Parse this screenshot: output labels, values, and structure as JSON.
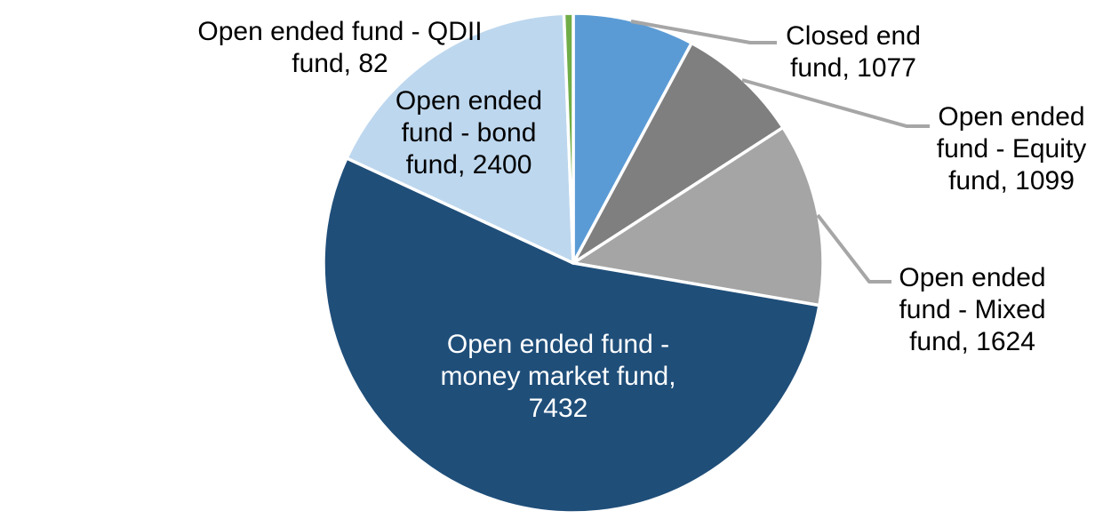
{
  "chart_data": {
    "type": "pie",
    "title": "",
    "legend_position": "none",
    "data_label_format": "category name, value",
    "start_angle_deg": 0,
    "direction": "clockwise",
    "total": 13714,
    "categories": [
      "Closed end fund",
      "Open ended fund - Equity fund",
      "Open ended fund - Mixed fund",
      "Open ended fund - money market fund",
      "Open ended fund - bond fund",
      "Open ended fund - QDII fund"
    ],
    "values": [
      1077,
      1099,
      1624,
      7432,
      2400,
      82
    ],
    "slices": [
      {
        "id": "closed-end-fund",
        "label": "Closed end fund",
        "value": 1077,
        "color": "#5B9BD5"
      },
      {
        "id": "equity-fund",
        "label": "Open ended fund - Equity fund",
        "value": 1099,
        "color": "#7F7F7F"
      },
      {
        "id": "mixed-fund",
        "label": "Open ended fund - Mixed fund",
        "value": 1624,
        "color": "#A5A5A5"
      },
      {
        "id": "money-market-fund",
        "label": "Open ended fund - money market fund",
        "value": 7432,
        "color": "#1F4E79"
      },
      {
        "id": "bond-fund",
        "label": "Open ended fund - bond fund",
        "value": 2400,
        "color": "#BDD7EE"
      },
      {
        "id": "qdii-fund",
        "label": "Open ended fund - QDII fund",
        "value": 82,
        "color": "#70AD47"
      }
    ]
  },
  "labels": {
    "qdii": {
      "lines": [
        "Open ended fund - QDII",
        "fund, 82"
      ]
    },
    "bond": {
      "lines": [
        "Open ended",
        "fund - bond",
        "fund, 2400"
      ]
    },
    "closed_end": {
      "lines": [
        "Closed end",
        "fund, 1077"
      ]
    },
    "equity": {
      "lines": [
        "Open ended",
        "fund - Equity",
        "fund, 1099"
      ]
    },
    "mixed": {
      "lines": [
        "Open ended",
        "fund - Mixed",
        "fund, 1624"
      ]
    },
    "money_market": {
      "lines": [
        "Open ended fund -",
        "money market fund,",
        "7432"
      ]
    }
  },
  "colors": {
    "leader_line": "#A6A6A6",
    "slice_border": "#FFFFFF",
    "outside_label_text": "#000000",
    "inside_label_text": "#FFFFFF",
    "background": "#FFFFFF"
  }
}
